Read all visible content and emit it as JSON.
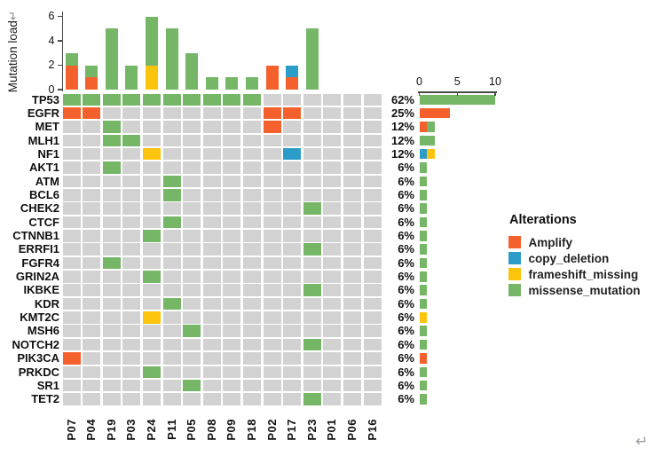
{
  "ui": {
    "return_mark": "↵"
  },
  "chart_data": {
    "type": "heatmap",
    "subtype": "oncoprint",
    "colors": {
      "Amplify": "#F4612C",
      "copy_deletion": "#2C9DC8",
      "frameshift_missing": "#FDC40D",
      "missense_mutation": "#75B667",
      "none": "#D2D2D2",
      "axis": "#4A4A4A"
    },
    "samples": [
      "P07",
      "P04",
      "P19",
      "P03",
      "P24",
      "P11",
      "P05",
      "P08",
      "P09",
      "P18",
      "P02",
      "P17",
      "P23",
      "P01",
      "P06",
      "P16"
    ],
    "top_axis": {
      "label": "Mutation load",
      "ticks": [
        0,
        2,
        4,
        6
      ],
      "max": 6
    },
    "right_axis": {
      "ticks": [
        0,
        5,
        10
      ],
      "max": 10
    },
    "top_bars": {
      "P07": [
        [
          "Amplify",
          2
        ],
        [
          "missense_mutation",
          1
        ]
      ],
      "P04": [
        [
          "Amplify",
          1
        ],
        [
          "missense_mutation",
          1
        ]
      ],
      "P19": [
        [
          "missense_mutation",
          5
        ]
      ],
      "P03": [
        [
          "missense_mutation",
          2
        ]
      ],
      "P24": [
        [
          "frameshift_missing",
          2
        ],
        [
          "missense_mutation",
          4
        ]
      ],
      "P11": [
        [
          "missense_mutation",
          5
        ]
      ],
      "P05": [
        [
          "missense_mutation",
          3
        ]
      ],
      "P08": [
        [
          "missense_mutation",
          1
        ]
      ],
      "P09": [
        [
          "missense_mutation",
          1
        ]
      ],
      "P18": [
        [
          "missense_mutation",
          1
        ]
      ],
      "P02": [
        [
          "Amplify",
          2
        ]
      ],
      "P17": [
        [
          "Amplify",
          1
        ],
        [
          "copy_deletion",
          1
        ]
      ],
      "P23": [
        [
          "missense_mutation",
          5
        ]
      ],
      "P01": [],
      "P06": [],
      "P16": []
    },
    "genes": [
      {
        "name": "TP53",
        "pct": "62%",
        "alterations": {
          "P07": "missense_mutation",
          "P04": "missense_mutation",
          "P19": "missense_mutation",
          "P03": "missense_mutation",
          "P24": "missense_mutation",
          "P11": "missense_mutation",
          "P05": "missense_mutation",
          "P08": "missense_mutation",
          "P09": "missense_mutation",
          "P18": "missense_mutation"
        },
        "right_bar": [
          [
            "missense_mutation",
            10
          ]
        ]
      },
      {
        "name": "EGFR",
        "pct": "25%",
        "alterations": {
          "P07": "Amplify",
          "P04": "Amplify",
          "P02": "Amplify",
          "P17": "Amplify"
        },
        "right_bar": [
          [
            "Amplify",
            4
          ]
        ]
      },
      {
        "name": "MET",
        "pct": "12%",
        "alterations": {
          "P19": "missense_mutation",
          "P02": "Amplify"
        },
        "right_bar": [
          [
            "Amplify",
            1
          ],
          [
            "missense_mutation",
            1
          ]
        ]
      },
      {
        "name": "MLH1",
        "pct": "12%",
        "alterations": {
          "P19": "missense_mutation",
          "P03": "missense_mutation"
        },
        "right_bar": [
          [
            "missense_mutation",
            2
          ]
        ]
      },
      {
        "name": "NF1",
        "pct": "12%",
        "alterations": {
          "P24": "frameshift_missing",
          "P17": "copy_deletion"
        },
        "right_bar": [
          [
            "copy_deletion",
            1
          ],
          [
            "frameshift_missing",
            1
          ]
        ]
      },
      {
        "name": "AKT1",
        "pct": "6%",
        "alterations": {
          "P19": "missense_mutation"
        },
        "right_bar": [
          [
            "missense_mutation",
            1
          ]
        ]
      },
      {
        "name": "ATM",
        "pct": "6%",
        "alterations": {
          "P11": "missense_mutation"
        },
        "right_bar": [
          [
            "missense_mutation",
            1
          ]
        ]
      },
      {
        "name": "BCL6",
        "pct": "6%",
        "alterations": {
          "P11": "missense_mutation"
        },
        "right_bar": [
          [
            "missense_mutation",
            1
          ]
        ]
      },
      {
        "name": "CHEK2",
        "pct": "6%",
        "alterations": {
          "P23": "missense_mutation"
        },
        "right_bar": [
          [
            "missense_mutation",
            1
          ]
        ]
      },
      {
        "name": "CTCF",
        "pct": "6%",
        "alterations": {
          "P11": "missense_mutation"
        },
        "right_bar": [
          [
            "missense_mutation",
            1
          ]
        ]
      },
      {
        "name": "CTNNB1",
        "pct": "6%",
        "alterations": {
          "P24": "missense_mutation"
        },
        "right_bar": [
          [
            "missense_mutation",
            1
          ]
        ]
      },
      {
        "name": "ERRFI1",
        "pct": "6%",
        "alterations": {
          "P23": "missense_mutation"
        },
        "right_bar": [
          [
            "missense_mutation",
            1
          ]
        ]
      },
      {
        "name": "FGFR4",
        "pct": "6%",
        "alterations": {
          "P19": "missense_mutation"
        },
        "right_bar": [
          [
            "missense_mutation",
            1
          ]
        ]
      },
      {
        "name": "GRIN2A",
        "pct": "6%",
        "alterations": {
          "P24": "missense_mutation"
        },
        "right_bar": [
          [
            "missense_mutation",
            1
          ]
        ]
      },
      {
        "name": "IKBKE",
        "pct": "6%",
        "alterations": {
          "P23": "missense_mutation"
        },
        "right_bar": [
          [
            "missense_mutation",
            1
          ]
        ]
      },
      {
        "name": "KDR",
        "pct": "6%",
        "alterations": {
          "P11": "missense_mutation"
        },
        "right_bar": [
          [
            "missense_mutation",
            1
          ]
        ]
      },
      {
        "name": "KMT2C",
        "pct": "6%",
        "alterations": {
          "P24": "frameshift_missing"
        },
        "right_bar": [
          [
            "frameshift_missing",
            1
          ]
        ]
      },
      {
        "name": "MSH6",
        "pct": "6%",
        "alterations": {
          "P05": "missense_mutation"
        },
        "right_bar": [
          [
            "missense_mutation",
            1
          ]
        ]
      },
      {
        "name": "NOTCH2",
        "pct": "6%",
        "alterations": {
          "P23": "missense_mutation"
        },
        "right_bar": [
          [
            "missense_mutation",
            1
          ]
        ]
      },
      {
        "name": "PIK3CA",
        "pct": "6%",
        "alterations": {
          "P07": "Amplify"
        },
        "right_bar": [
          [
            "Amplify",
            1
          ]
        ]
      },
      {
        "name": "PRKDC",
        "pct": "6%",
        "alterations": {
          "P24": "missense_mutation"
        },
        "right_bar": [
          [
            "missense_mutation",
            1
          ]
        ]
      },
      {
        "name": "SR1",
        "pct": "6%",
        "alterations": {
          "P05": "missense_mutation"
        },
        "right_bar": [
          [
            "missense_mutation",
            1
          ]
        ]
      },
      {
        "name": "TET2",
        "pct": "6%",
        "alterations": {
          "P23": "missense_mutation"
        },
        "right_bar": [
          [
            "missense_mutation",
            1
          ]
        ]
      }
    ],
    "legend": {
      "title": "Alterations",
      "items": [
        {
          "key": "Amplify",
          "label": "Amplify"
        },
        {
          "key": "copy_deletion",
          "label": "copy_deletion"
        },
        {
          "key": "frameshift_missing",
          "label": "frameshift_missing"
        },
        {
          "key": "missense_mutation",
          "label": "missense_mutation"
        }
      ]
    }
  }
}
